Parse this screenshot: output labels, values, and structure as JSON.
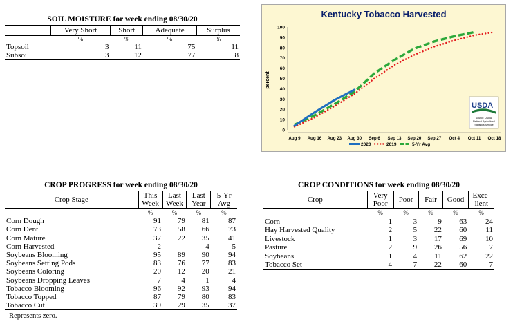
{
  "soil_moisture": {
    "title": "SOIL MOISTURE for week ending 08/30/20",
    "columns": [
      "Very Short",
      "Short",
      "Adequate",
      "Surplus"
    ],
    "unit": "%",
    "rows": [
      {
        "label": "Topsoil",
        "values": [
          "3",
          "11",
          "75",
          "11"
        ]
      },
      {
        "label": "Subsoil",
        "values": [
          "3",
          "12",
          "77",
          "8"
        ]
      }
    ]
  },
  "crop_progress": {
    "title": "CROP PROGRESS for week ending 08/30/20",
    "header_stage": "Crop Stage",
    "columns": [
      {
        "l1": "This",
        "l2": "Week"
      },
      {
        "l1": "Last",
        "l2": "Week"
      },
      {
        "l1": "Last",
        "l2": "Year"
      },
      {
        "l1": "5-Yr",
        "l2": "Avg"
      }
    ],
    "unit": "%",
    "rows": [
      {
        "label": "Corn Dough",
        "values": [
          "91",
          "79",
          "81",
          "87"
        ]
      },
      {
        "label": "Corn Dent",
        "values": [
          "73",
          "58",
          "66",
          "73"
        ]
      },
      {
        "label": "Corn Mature",
        "values": [
          "37",
          "22",
          "35",
          "41"
        ]
      },
      {
        "label": "Corn Harvested",
        "values": [
          "2",
          "-",
          "4",
          "5"
        ]
      },
      {
        "label": "Soybeans Blooming",
        "values": [
          "95",
          "89",
          "90",
          "94"
        ]
      },
      {
        "label": "Soybeans Setting Pods",
        "values": [
          "83",
          "76",
          "77",
          "83"
        ]
      },
      {
        "label": "Soybeans Coloring",
        "values": [
          "20",
          "12",
          "20",
          "21"
        ]
      },
      {
        "label": "Soybeans Dropping Leaves",
        "values": [
          "7",
          "4",
          "1",
          "4"
        ]
      },
      {
        "label": "Tobacco Blooming",
        "values": [
          "96",
          "92",
          "93",
          "94"
        ]
      },
      {
        "label": "Tobacco Topped",
        "values": [
          "87",
          "79",
          "80",
          "83"
        ]
      },
      {
        "label": "Tobacco Cut",
        "values": [
          "39",
          "29",
          "35",
          "37"
        ]
      }
    ],
    "note": "- Represents zero."
  },
  "crop_conditions": {
    "title": "CROP CONDITIONS for week ending 08/30/20",
    "header_crop": "Crop",
    "columns": [
      {
        "l1": "Very",
        "l2": "Poor"
      },
      {
        "l1": "Poor",
        "l2": ""
      },
      {
        "l1": "Fair",
        "l2": ""
      },
      {
        "l1": "Good",
        "l2": ""
      },
      {
        "l1": "Exce-",
        "l2": "llent"
      }
    ],
    "unit": "%",
    "rows": [
      {
        "label": "Corn",
        "values": [
          "1",
          "3",
          "9",
          "63",
          "24"
        ]
      },
      {
        "label": "Hay Harvested Quality",
        "values": [
          "2",
          "5",
          "22",
          "60",
          "11"
        ]
      },
      {
        "label": "Livestock",
        "values": [
          "1",
          "3",
          "17",
          "69",
          "10"
        ]
      },
      {
        "label": "Pasture",
        "values": [
          "2",
          "9",
          "26",
          "56",
          "7"
        ]
      },
      {
        "label": "Soybeans",
        "values": [
          "1",
          "4",
          "11",
          "62",
          "22"
        ]
      },
      {
        "label": "Tobacco Set",
        "values": [
          "4",
          "7",
          "22",
          "60",
          "7"
        ]
      }
    ]
  },
  "chart_data": {
    "type": "line",
    "title": "Kentucky Tobacco Harvested",
    "ylabel": "percent",
    "xlabel": "",
    "ylim": [
      0,
      100
    ],
    "yticks": [
      0,
      10,
      20,
      30,
      40,
      50,
      60,
      70,
      80,
      90,
      100
    ],
    "categories": [
      "Aug 9",
      "Aug 16",
      "Aug 23",
      "Aug 30",
      "Sep 6",
      "Sep 13",
      "Sep 20",
      "Sep 27",
      "Oct 4",
      "Oct 11",
      "Oct 18"
    ],
    "grid": false,
    "legend_position": "bottom",
    "series": [
      {
        "name": "2020",
        "color": "#1f6fc0",
        "style": "solid",
        "values": [
          4,
          17,
          29,
          39,
          null,
          null,
          null,
          null,
          null,
          null,
          null
        ]
      },
      {
        "name": "2019",
        "color": "#e31a1c",
        "style": "dotted",
        "values": [
          3,
          12,
          23,
          35,
          50,
          63,
          73,
          81,
          87,
          92,
          95
        ]
      },
      {
        "name": "5-Yr Avg",
        "color": "#2ca83a",
        "style": "dashed",
        "values": [
          5,
          14,
          25,
          37,
          55,
          68,
          79,
          86,
          91,
          95,
          null
        ]
      }
    ],
    "logo": {
      "text": "USDA",
      "source_line1": "Source: USDA,",
      "source_line2": "National Agricultural",
      "source_line3": "Statistics Service"
    },
    "background_color": "#fdf7d2",
    "border_color": "#a8a8a8"
  }
}
